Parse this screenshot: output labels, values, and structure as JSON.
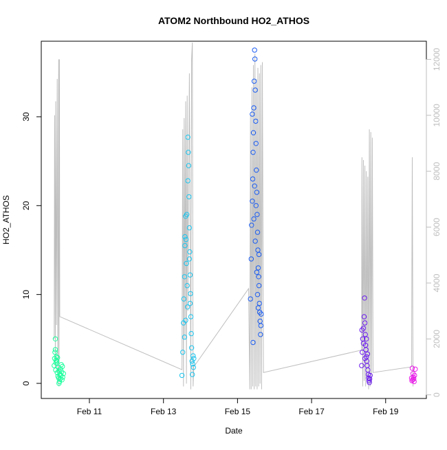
{
  "chart_data": {
    "type": "scatter",
    "title": "ATOM2 Northbound HO2_ATHOS",
    "xlabel": "Date",
    "ylabel": "HO2_ATHOS",
    "x_ticks": [
      "Feb 11",
      "Feb 13",
      "Feb 15",
      "Feb 17",
      "Feb 19"
    ],
    "x_tick_days": [
      11,
      13,
      15,
      17,
      19
    ],
    "xlim_days": [
      9.7,
      20.1
    ],
    "y_ticks": [
      0,
      10,
      20,
      30
    ],
    "ylim": [
      -1.7,
      38.5
    ],
    "y2_ticks": [
      0,
      2000,
      4000,
      6000,
      8000,
      10000,
      12000
    ],
    "y2lim": [
      -130,
      12650
    ],
    "y2_color": "#bebebe",
    "grid": false,
    "legend": "none",
    "series": [
      {
        "color": "#1aff9c",
        "points": [
          {
            "x": 10.05,
            "y": 2.0
          },
          {
            "x": 10.06,
            "y": 2.8
          },
          {
            "x": 10.07,
            "y": 3.5
          },
          {
            "x": 10.08,
            "y": 5.0
          },
          {
            "x": 10.09,
            "y": 1.5
          },
          {
            "x": 10.1,
            "y": 2.3
          },
          {
            "x": 10.11,
            "y": 3.0
          },
          {
            "x": 10.12,
            "y": 2.5
          },
          {
            "x": 10.13,
            "y": 1.2
          },
          {
            "x": 10.14,
            "y": 2.9
          },
          {
            "x": 10.15,
            "y": 0.8
          },
          {
            "x": 10.16,
            "y": 1.8
          },
          {
            "x": 10.17,
            "y": 0.6
          },
          {
            "x": 10.18,
            "y": 1.4
          },
          {
            "x": 10.19,
            "y": 0.2
          },
          {
            "x": 10.2,
            "y": 1.0
          },
          {
            "x": 10.21,
            "y": 0.5
          },
          {
            "x": 10.22,
            "y": 1.6
          },
          {
            "x": 10.23,
            "y": 0.9
          },
          {
            "x": 10.24,
            "y": 2.1
          },
          {
            "x": 10.25,
            "y": 1.3
          },
          {
            "x": 10.26,
            "y": 0.4
          },
          {
            "x": 10.27,
            "y": 1.9
          },
          {
            "x": 10.28,
            "y": 0.7
          },
          {
            "x": 10.3,
            "y": 1.1
          },
          {
            "x": 10.08,
            "y": 3.8
          },
          {
            "x": 10.1,
            "y": 2.6
          },
          {
            "x": 10.18,
            "y": 0.0
          }
        ]
      },
      {
        "color": "#1ac5ef",
        "points": [
          {
            "x": 13.5,
            "y": 0.9
          },
          {
            "x": 13.52,
            "y": 3.5
          },
          {
            "x": 13.54,
            "y": 6.8
          },
          {
            "x": 13.55,
            "y": 9.5
          },
          {
            "x": 13.57,
            "y": 12.0
          },
          {
            "x": 13.58,
            "y": 15.5
          },
          {
            "x": 13.6,
            "y": 18.8
          },
          {
            "x": 13.61,
            "y": 16.2
          },
          {
            "x": 13.62,
            "y": 13.5
          },
          {
            "x": 13.64,
            "y": 11.0
          },
          {
            "x": 13.65,
            "y": 8.6
          },
          {
            "x": 13.66,
            "y": 27.7
          },
          {
            "x": 13.67,
            "y": 26.0
          },
          {
            "x": 13.68,
            "y": 24.5
          },
          {
            "x": 13.69,
            "y": 21.0
          },
          {
            "x": 13.7,
            "y": 17.5
          },
          {
            "x": 13.71,
            "y": 14.8
          },
          {
            "x": 13.72,
            "y": 12.2
          },
          {
            "x": 13.73,
            "y": 10.1
          },
          {
            "x": 13.74,
            "y": 7.5
          },
          {
            "x": 13.75,
            "y": 5.6
          },
          {
            "x": 13.76,
            "y": 4.0
          },
          {
            "x": 13.77,
            "y": 2.5
          },
          {
            "x": 13.78,
            "y": 1.0
          },
          {
            "x": 13.79,
            "y": 2.2
          },
          {
            "x": 13.8,
            "y": 3.1
          },
          {
            "x": 13.81,
            "y": 1.8
          },
          {
            "x": 13.82,
            "y": 2.8
          },
          {
            "x": 13.57,
            "y": 5.2
          },
          {
            "x": 13.6,
            "y": 7.1
          },
          {
            "x": 13.63,
            "y": 19.0
          },
          {
            "x": 13.66,
            "y": 22.8
          },
          {
            "x": 13.7,
            "y": 14.0
          },
          {
            "x": 13.72,
            "y": 9.0
          },
          {
            "x": 13.58,
            "y": 16.5
          }
        ]
      },
      {
        "color": "#1a5cf2",
        "points": [
          {
            "x": 15.35,
            "y": 9.5
          },
          {
            "x": 15.37,
            "y": 14.0
          },
          {
            "x": 15.38,
            "y": 17.8
          },
          {
            "x": 15.4,
            "y": 20.5
          },
          {
            "x": 15.41,
            "y": 23.0
          },
          {
            "x": 15.42,
            "y": 26.0
          },
          {
            "x": 15.43,
            "y": 28.2
          },
          {
            "x": 15.44,
            "y": 31.0
          },
          {
            "x": 15.45,
            "y": 34.0
          },
          {
            "x": 15.46,
            "y": 37.5
          },
          {
            "x": 15.47,
            "y": 36.5
          },
          {
            "x": 15.48,
            "y": 33.0
          },
          {
            "x": 15.49,
            "y": 29.5
          },
          {
            "x": 15.5,
            "y": 27.0
          },
          {
            "x": 15.51,
            "y": 24.0
          },
          {
            "x": 15.52,
            "y": 21.5
          },
          {
            "x": 15.53,
            "y": 19.0
          },
          {
            "x": 15.54,
            "y": 17.0
          },
          {
            "x": 15.55,
            "y": 15.0
          },
          {
            "x": 15.56,
            "y": 13.0
          },
          {
            "x": 15.57,
            "y": 12.0
          },
          {
            "x": 15.58,
            "y": 11.0
          },
          {
            "x": 15.59,
            "y": 9.0
          },
          {
            "x": 15.6,
            "y": 8.0
          },
          {
            "x": 15.61,
            "y": 7.0
          },
          {
            "x": 15.62,
            "y": 5.5
          },
          {
            "x": 15.63,
            "y": 6.5
          },
          {
            "x": 15.64,
            "y": 7.8
          },
          {
            "x": 15.42,
            "y": 4.6
          },
          {
            "x": 15.44,
            "y": 18.5
          },
          {
            "x": 15.46,
            "y": 22.2
          },
          {
            "x": 15.48,
            "y": 16.0
          },
          {
            "x": 15.5,
            "y": 20.0
          },
          {
            "x": 15.52,
            "y": 12.5
          },
          {
            "x": 15.54,
            "y": 10.0
          },
          {
            "x": 15.4,
            "y": 30.3
          },
          {
            "x": 15.56,
            "y": 8.5
          },
          {
            "x": 15.58,
            "y": 14.5
          }
        ]
      },
      {
        "color": "#6b1aee",
        "points": [
          {
            "x": 18.35,
            "y": 2.0
          },
          {
            "x": 18.37,
            "y": 3.5
          },
          {
            "x": 18.38,
            "y": 5.0
          },
          {
            "x": 18.4,
            "y": 6.2
          },
          {
            "x": 18.42,
            "y": 7.5
          },
          {
            "x": 18.43,
            "y": 9.6
          },
          {
            "x": 18.44,
            "y": 6.8
          },
          {
            "x": 18.45,
            "y": 5.5
          },
          {
            "x": 18.46,
            "y": 4.3
          },
          {
            "x": 18.47,
            "y": 3.8
          },
          {
            "x": 18.48,
            "y": 3.0
          },
          {
            "x": 18.49,
            "y": 2.5
          },
          {
            "x": 18.5,
            "y": 2.0
          },
          {
            "x": 18.52,
            "y": 1.5
          },
          {
            "x": 18.53,
            "y": 1.0
          },
          {
            "x": 18.54,
            "y": 0.6
          },
          {
            "x": 18.55,
            "y": 0.3
          },
          {
            "x": 18.56,
            "y": 0.1
          },
          {
            "x": 18.57,
            "y": 0.5
          },
          {
            "x": 18.58,
            "y": 0.9
          },
          {
            "x": 18.4,
            "y": 4.5
          },
          {
            "x": 18.44,
            "y": 2.8
          },
          {
            "x": 18.36,
            "y": 6.0
          },
          {
            "x": 18.48,
            "y": 5.0
          },
          {
            "x": 18.51,
            "y": 3.3
          }
        ]
      },
      {
        "color": "#e81ae8",
        "points": [
          {
            "x": 19.7,
            "y": 0.6
          },
          {
            "x": 19.72,
            "y": 1.7
          },
          {
            "x": 19.73,
            "y": 0.4
          },
          {
            "x": 19.74,
            "y": 1.1
          },
          {
            "x": 19.75,
            "y": 0.7
          },
          {
            "x": 19.76,
            "y": 0.5
          },
          {
            "x": 19.78,
            "y": 0.9
          },
          {
            "x": 19.8,
            "y": 1.6
          },
          {
            "x": 19.71,
            "y": 0.3
          },
          {
            "x": 19.77,
            "y": 0.2
          }
        ]
      }
    ],
    "background_line": {
      "color": "#bebebe",
      "axis": "right",
      "points": [
        {
          "x": 10.05,
          "y": 2000
        },
        {
          "x": 10.06,
          "y": 10000
        },
        {
          "x": 10.08,
          "y": 1000
        },
        {
          "x": 10.09,
          "y": 10500
        },
        {
          "x": 10.11,
          "y": 2500
        },
        {
          "x": 10.13,
          "y": 11300
        },
        {
          "x": 10.15,
          "y": 500
        },
        {
          "x": 10.17,
          "y": 12000
        },
        {
          "x": 10.18,
          "y": 300
        },
        {
          "x": 10.19,
          "y": 12000
        },
        {
          "x": 10.2,
          "y": 2800
        },
        {
          "x": 13.5,
          "y": 900
        },
        {
          "x": 13.52,
          "y": 9500
        },
        {
          "x": 13.54,
          "y": 300
        },
        {
          "x": 13.56,
          "y": 9900
        },
        {
          "x": 13.58,
          "y": 2000
        },
        {
          "x": 13.6,
          "y": 10500
        },
        {
          "x": 13.62,
          "y": 400
        },
        {
          "x": 13.64,
          "y": 10700
        },
        {
          "x": 13.66,
          "y": 3000
        },
        {
          "x": 13.7,
          "y": 11500
        },
        {
          "x": 13.74,
          "y": 200
        },
        {
          "x": 13.76,
          "y": 12000
        },
        {
          "x": 13.78,
          "y": 12600
        },
        {
          "x": 13.8,
          "y": 300
        },
        {
          "x": 13.82,
          "y": 1000
        },
        {
          "x": 15.3,
          "y": 3800
        },
        {
          "x": 15.33,
          "y": 200
        },
        {
          "x": 15.35,
          "y": 10000
        },
        {
          "x": 15.37,
          "y": 200
        },
        {
          "x": 15.39,
          "y": 11000
        },
        {
          "x": 15.41,
          "y": 300
        },
        {
          "x": 15.43,
          "y": 11800
        },
        {
          "x": 15.45,
          "y": 200
        },
        {
          "x": 15.47,
          "y": 12200
        },
        {
          "x": 15.49,
          "y": 300
        },
        {
          "x": 15.51,
          "y": 11300
        },
        {
          "x": 15.53,
          "y": 200
        },
        {
          "x": 15.55,
          "y": 11700
        },
        {
          "x": 15.57,
          "y": 300
        },
        {
          "x": 15.59,
          "y": 11500
        },
        {
          "x": 15.61,
          "y": 400
        },
        {
          "x": 15.63,
          "y": 11800
        },
        {
          "x": 15.65,
          "y": 200
        },
        {
          "x": 15.67,
          "y": 11900
        },
        {
          "x": 15.7,
          "y": 800
        },
        {
          "x": 18.35,
          "y": 1600
        },
        {
          "x": 18.36,
          "y": 8500
        },
        {
          "x": 18.38,
          "y": 300
        },
        {
          "x": 18.4,
          "y": 8400
        },
        {
          "x": 18.42,
          "y": 500
        },
        {
          "x": 18.44,
          "y": 8200
        },
        {
          "x": 18.46,
          "y": 300
        },
        {
          "x": 18.48,
          "y": 8000
        },
        {
          "x": 18.5,
          "y": 600
        },
        {
          "x": 18.52,
          "y": 7800
        },
        {
          "x": 18.54,
          "y": 200
        },
        {
          "x": 18.56,
          "y": 9500
        },
        {
          "x": 18.58,
          "y": 300
        },
        {
          "x": 18.6,
          "y": 9400
        },
        {
          "x": 18.62,
          "y": 400
        },
        {
          "x": 18.64,
          "y": 9200
        },
        {
          "x": 18.66,
          "y": 800
        },
        {
          "x": 19.7,
          "y": 1000
        },
        {
          "x": 19.72,
          "y": 8500
        },
        {
          "x": 19.74,
          "y": 300
        }
      ]
    }
  }
}
